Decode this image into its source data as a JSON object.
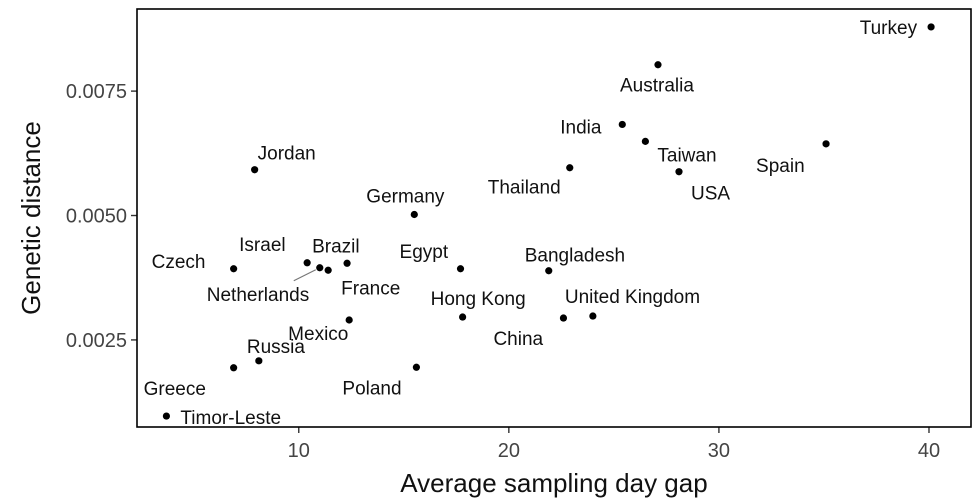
{
  "chart_data": {
    "type": "scatter",
    "xlabel": "Average sampling day gap",
    "ylabel": "Genetic distance",
    "xlim": [
      2.3,
      42
    ],
    "ylim": [
      0.00075,
      0.00915
    ],
    "xticks": [
      10,
      20,
      30,
      40
    ],
    "yticks": [
      0.0025,
      0.005,
      0.0075
    ],
    "xtick_labels": [
      "10",
      "20",
      "30",
      "40"
    ],
    "ytick_labels": [
      "0.0025",
      "0.0050",
      "0.0075"
    ],
    "grid": false,
    "point_color": "#000000",
    "points": [
      {
        "name": "Turkey",
        "x": 40.1,
        "y": 0.00879
      },
      {
        "name": "Australia",
        "x": 27.1,
        "y": 0.00803
      },
      {
        "name": "India",
        "x": 25.4,
        "y": 0.00683
      },
      {
        "name": "Taiwan",
        "x": 26.5,
        "y": 0.00649
      },
      {
        "name": "USA",
        "x": 28.1,
        "y": 0.00588
      },
      {
        "name": "Spain",
        "x": 35.1,
        "y": 0.00644
      },
      {
        "name": "Jordan",
        "x": 7.9,
        "y": 0.00592
      },
      {
        "name": "Thailand",
        "x": 22.9,
        "y": 0.00596
      },
      {
        "name": "Germany",
        "x": 15.5,
        "y": 0.00502
      },
      {
        "name": "Czech",
        "x": 6.9,
        "y": 0.00393
      },
      {
        "name": "Israel",
        "x": 10.4,
        "y": 0.00405
      },
      {
        "name": "Brazil",
        "x": 12.3,
        "y": 0.00404
      },
      {
        "name": "Netherlands",
        "x": 11.0,
        "y": 0.00395
      },
      {
        "name": "France",
        "x": 11.4,
        "y": 0.0039
      },
      {
        "name": "Egypt",
        "x": 17.7,
        "y": 0.00393
      },
      {
        "name": "Bangladesh",
        "x": 21.9,
        "y": 0.00389
      },
      {
        "name": "Hong Kong",
        "x": 17.8,
        "y": 0.00296
      },
      {
        "name": "China",
        "x": 22.6,
        "y": 0.00294
      },
      {
        "name": "United Kingdom",
        "x": 24.0,
        "y": 0.00298
      },
      {
        "name": "Mexico",
        "x": 12.4,
        "y": 0.0029
      },
      {
        "name": "Russia",
        "x": 8.1,
        "y": 0.00208
      },
      {
        "name": "Greece",
        "x": 6.9,
        "y": 0.00194
      },
      {
        "name": "Poland",
        "x": 15.6,
        "y": 0.00195
      },
      {
        "name": "Timor-Leste",
        "x": 3.7,
        "y": 0.00097
      }
    ]
  }
}
